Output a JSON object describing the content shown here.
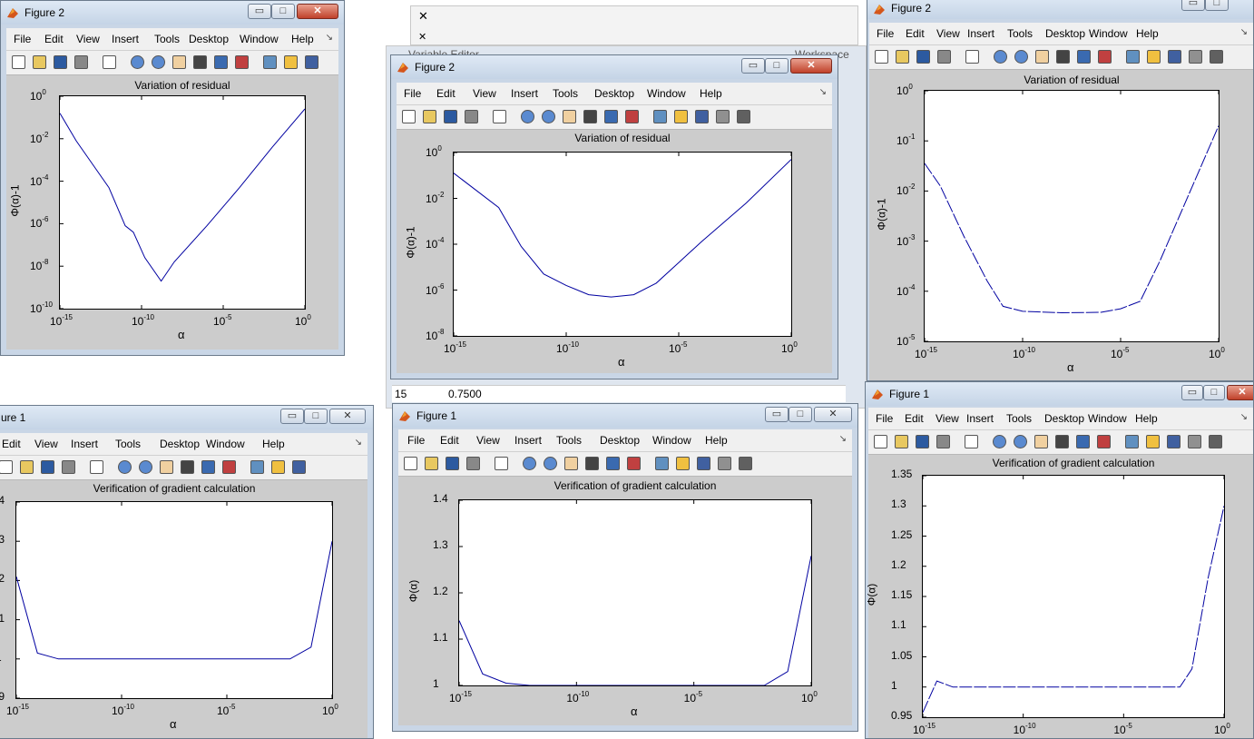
{
  "windows": {
    "tl": {
      "title": "Figure 2"
    },
    "tc": {
      "title": "Figure 2"
    },
    "tr": {
      "title": "Figure 2"
    },
    "bl": {
      "title": "ure 1"
    },
    "bc": {
      "title": "Figure 1"
    },
    "br": {
      "title": "Figure 1"
    }
  },
  "menus": {
    "full": [
      "File",
      "Edit",
      "View",
      "Insert",
      "Tools",
      "Desktop",
      "Window",
      "Help"
    ],
    "bl": [
      "Edit",
      "View",
      "Insert",
      "Tools",
      "Desktop",
      "Window",
      "Help"
    ]
  },
  "background": {
    "editor_title": "Variable Editor",
    "workspace": "Workspace",
    "cell_row": "15",
    "cell_value": "0.7500"
  },
  "colors": {
    "line": "#0000a0",
    "chrome": "#f0f0f0",
    "fig_bg": "#cccccc"
  },
  "plots": {
    "tl": {
      "title": "Variation of residual",
      "ylabel": "Φ(α)-1",
      "xlabel": "α",
      "yticks": [
        "10",
        "10",
        "10",
        "10",
        "10",
        "10"
      ],
      "yexp": [
        "0",
        "-2",
        "-4",
        "-6",
        "-8",
        "-10"
      ],
      "xticks": [
        "10",
        "10",
        "10",
        "10"
      ],
      "xexp": [
        "-15",
        "-10",
        "-5",
        "0"
      ]
    },
    "tc": {
      "title": "Variation of residual",
      "ylabel": "Φ(α)-1",
      "xlabel": "α",
      "yticks": [
        "10",
        "10",
        "10",
        "10",
        "10"
      ],
      "yexp": [
        "0",
        "-2",
        "-4",
        "-6",
        "-8"
      ],
      "xticks": [
        "10",
        "10",
        "10",
        "10"
      ],
      "xexp": [
        "-15",
        "-10",
        "-5",
        "0"
      ]
    },
    "tr": {
      "title": "Variation of residual",
      "ylabel": "Φ(α)-1",
      "xlabel": "α",
      "yticks": [
        "10",
        "10",
        "10",
        "10",
        "10",
        "10"
      ],
      "yexp": [
        "0",
        "-1",
        "-2",
        "-3",
        "-4",
        "-5"
      ],
      "xticks": [
        "10",
        "10",
        "10",
        "10"
      ],
      "xexp": [
        "-15",
        "-10",
        "-5",
        "0"
      ]
    },
    "bl": {
      "title": "Verification of gradient calculation",
      "ylabel": "",
      "xlabel": "α",
      "yticks": [
        ".4",
        ".3",
        ".2",
        ".1",
        "1",
        ".9"
      ],
      "xticks": [
        "10",
        "10",
        "10",
        "10"
      ],
      "xexp": [
        "-15",
        "-10",
        "-5",
        "0"
      ]
    },
    "bc": {
      "title": "Verification of gradient calculation",
      "ylabel": "Φ(α)",
      "xlabel": "α",
      "yticks": [
        "1.4",
        "1.3",
        "1.2",
        "1.1",
        "1"
      ],
      "xticks": [
        "10",
        "10",
        "10",
        "10"
      ],
      "xexp": [
        "-15",
        "-10",
        "-5",
        "0"
      ]
    },
    "br": {
      "title": "Verification of gradient calculation",
      "ylabel": "Φ(α)",
      "xlabel": "α",
      "yticks": [
        "1.35",
        "1.3",
        "1.25",
        "1.2",
        "1.15",
        "1.1",
        "1.05",
        "1",
        "0.95"
      ],
      "xticks": [
        "10",
        "10",
        "10",
        "10"
      ],
      "xexp": [
        "-15",
        "-10",
        "-5",
        "0"
      ]
    }
  },
  "chart_data": [
    {
      "type": "line",
      "title": "Variation of residual",
      "xlabel": "α",
      "ylabel": "Φ(α)-1",
      "xscale": "log",
      "yscale": "log",
      "xlim": [
        1e-15,
        1
      ],
      "ylim": [
        1e-10,
        1
      ],
      "x": [
        -15,
        -14,
        -13,
        -12,
        -11,
        -10.5,
        -9.8,
        -8.8,
        -8,
        -6,
        -4,
        -2,
        0
      ],
      "y": [
        -0.8,
        -2.1,
        -3.2,
        -4.3,
        -6.1,
        -6.4,
        -7.6,
        -8.7,
        -7.8,
        -6.1,
        -4.3,
        -2.4,
        -0.6
      ]
    },
    {
      "type": "line",
      "title": "Variation of residual",
      "xlabel": "α",
      "ylabel": "Φ(α)-1",
      "xscale": "log",
      "yscale": "log",
      "xlim": [
        1e-15,
        1
      ],
      "ylim": [
        1e-08,
        1
      ],
      "x": [
        -15,
        -13,
        -12,
        -11,
        -10,
        -9,
        -8,
        -7,
        -6,
        -5,
        -4,
        -2,
        0
      ],
      "y": [
        -0.9,
        -2.4,
        -4.1,
        -5.3,
        -5.8,
        -6.2,
        -6.3,
        -6.2,
        -5.7,
        -4.8,
        -3.9,
        -2.2,
        -0.3
      ]
    },
    {
      "type": "line",
      "title": "Variation of residual",
      "xlabel": "α",
      "ylabel": "Φ(α)-1",
      "xscale": "log",
      "yscale": "log",
      "xlim": [
        1e-15,
        1
      ],
      "ylim": [
        1e-05,
        1
      ],
      "x": [
        -15,
        -14.2,
        -13,
        -11.8,
        -11,
        -10,
        -8,
        -6,
        -5,
        -4,
        -3,
        -2,
        -1,
        0
      ],
      "y": [
        -1.45,
        -1.9,
        -2.9,
        -3.8,
        -4.3,
        -4.4,
        -4.43,
        -4.42,
        -4.35,
        -4.2,
        -3.4,
        -2.5,
        -1.6,
        -0.7
      ]
    },
    {
      "type": "line",
      "title": "Verification of gradient calculation",
      "xlabel": "α",
      "xscale": "log",
      "xlim": [
        1e-15,
        1
      ],
      "ylim": [
        0.9,
        1.4
      ],
      "x": [
        -15,
        -14,
        -13,
        -12,
        -10,
        -5,
        -2,
        -1,
        0
      ],
      "y": [
        1.21,
        1.015,
        1.0,
        1.0,
        1.0,
        1.0,
        1.0,
        1.03,
        1.3
      ]
    },
    {
      "type": "line",
      "title": "Verification of gradient calculation",
      "xlabel": "α",
      "ylabel": "Φ(α)",
      "xscale": "log",
      "xlim": [
        1e-15,
        1
      ],
      "ylim": [
        1,
        1.4
      ],
      "x": [
        -15,
        -14,
        -13,
        -12,
        -10,
        -5,
        -2,
        -1,
        0
      ],
      "y": [
        1.14,
        1.025,
        1.005,
        1.0,
        1.0,
        1.0,
        1.0,
        1.03,
        1.28
      ]
    },
    {
      "type": "line",
      "title": "Verification of gradient calculation",
      "xlabel": "α",
      "ylabel": "Φ(α)",
      "xscale": "log",
      "xlim": [
        1e-15,
        1
      ],
      "ylim": [
        0.95,
        1.35
      ],
      "x": [
        -15,
        -14.3,
        -13.5,
        -12,
        -10,
        -5,
        -3.6,
        -3,
        -2.2,
        -1.6,
        -0.8,
        0
      ],
      "y": [
        0.958,
        1.01,
        1.0,
        1.0,
        1.0,
        1.0,
        1.0,
        1.0,
        1.0,
        1.03,
        1.18,
        1.3
      ]
    }
  ]
}
